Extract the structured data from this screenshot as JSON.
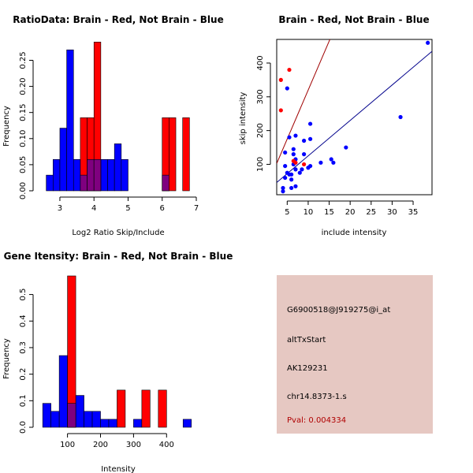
{
  "colors": {
    "red": "#ff0000",
    "blue": "#0000ff",
    "overlap": "#7f007f",
    "panel_bg": "#e6c8c2",
    "pval": "#b00000",
    "fit_red": "#a00000",
    "fit_blue": "#00008b"
  },
  "chart_data": [
    {
      "type": "bar",
      "title": "RatioData: Brain - Red, Not Brain - Blue",
      "xlabel": "Log2 Ratio Skip/Include",
      "ylabel": "Frequency",
      "xlim": [
        2.4,
        7.0
      ],
      "ylim": [
        0,
        0.29
      ],
      "xticks": [
        3,
        4,
        5,
        6,
        7
      ],
      "yticks": [
        0.0,
        0.05,
        0.1,
        0.15,
        0.2,
        0.25
      ],
      "ytick_labels": [
        "0.00",
        "0.05",
        "0.10",
        "0.15",
        "0.20",
        "0.25"
      ],
      "bin_width": 0.2,
      "series": [
        {
          "name": "Not Brain",
          "color": "blue",
          "bins": [
            {
              "x0": 2.6,
              "h": 0.03
            },
            {
              "x0": 2.8,
              "h": 0.06
            },
            {
              "x0": 3.0,
              "h": 0.12
            },
            {
              "x0": 3.2,
              "h": 0.27
            },
            {
              "x0": 3.4,
              "h": 0.06
            },
            {
              "x0": 3.6,
              "h": 0.03
            },
            {
              "x0": 3.8,
              "h": 0.06
            },
            {
              "x0": 4.0,
              "h": 0.06
            },
            {
              "x0": 4.2,
              "h": 0.06
            },
            {
              "x0": 4.4,
              "h": 0.06
            },
            {
              "x0": 4.6,
              "h": 0.09
            },
            {
              "x0": 4.8,
              "h": 0.06
            },
            {
              "x0": 6.0,
              "h": 0.03
            }
          ]
        },
        {
          "name": "Brain",
          "color": "red",
          "bins": [
            {
              "x0": 3.6,
              "h": 0.14
            },
            {
              "x0": 3.8,
              "h": 0.14
            },
            {
              "x0": 4.0,
              "h": 0.285
            },
            {
              "x0": 6.0,
              "h": 0.14
            },
            {
              "x0": 6.2,
              "h": 0.14
            },
            {
              "x0": 6.6,
              "h": 0.14
            }
          ]
        }
      ]
    },
    {
      "type": "scatter",
      "title": "Brain - Red, Not Brain - Blue",
      "xlabel": "include intensity",
      "ylabel": "skip intensity",
      "xlim": [
        2.5,
        39.5
      ],
      "ylim": [
        10,
        470
      ],
      "xticks": [
        5,
        10,
        15,
        20,
        25,
        30,
        35
      ],
      "yticks": [
        100,
        200,
        300,
        400
      ],
      "series": [
        {
          "name": "Not Brain",
          "color": "blue",
          "points": [
            [
              4,
              20
            ],
            [
              4,
              30
            ],
            [
              4.5,
              60
            ],
            [
              4.5,
              95
            ],
            [
              4.5,
              135
            ],
            [
              5,
              75
            ],
            [
              5,
              325
            ],
            [
              5.5,
              70
            ],
            [
              5.5,
              180
            ],
            [
              6,
              30
            ],
            [
              6,
              55
            ],
            [
              6,
              70
            ],
            [
              6.5,
              100
            ],
            [
              6.5,
              130
            ],
            [
              6.5,
              145
            ],
            [
              7,
              35
            ],
            [
              7,
              85
            ],
            [
              7,
              115
            ],
            [
              7,
              185
            ],
            [
              8,
              75
            ],
            [
              8.5,
              85
            ],
            [
              9,
              130
            ],
            [
              9,
              170
            ],
            [
              10,
              90
            ],
            [
              10.5,
              95
            ],
            [
              10.5,
              175
            ],
            [
              10.5,
              220
            ],
            [
              13,
              105
            ],
            [
              15.5,
              115
            ],
            [
              16,
              105
            ],
            [
              19,
              150
            ],
            [
              32,
              240
            ],
            [
              38.5,
              460
            ]
          ]
        },
        {
          "name": "Brain",
          "color": "red",
          "points": [
            [
              3.5,
              350
            ],
            [
              3.5,
              260
            ],
            [
              5.5,
              380
            ],
            [
              6.5,
              110
            ],
            [
              7,
              105
            ],
            [
              9,
              100
            ]
          ]
        }
      ],
      "fit_lines": [
        {
          "name": "Brain fit",
          "color": "fit_red",
          "intercept": 30,
          "slope": 29
        },
        {
          "name": "Not Brain fit",
          "color": "fit_blue",
          "intercept": 20,
          "slope": 10.5
        }
      ]
    },
    {
      "type": "bar",
      "title": "Gene Itensity: Brain - Red, Not Brain - Blue",
      "xlabel": "Intensity",
      "ylabel": "Frequency",
      "xlim": [
        15,
        490
      ],
      "ylim": [
        0,
        0.57
      ],
      "xticks": [
        100,
        200,
        300,
        400
      ],
      "yticks": [
        0.0,
        0.1,
        0.2,
        0.3,
        0.4,
        0.5
      ],
      "ytick_labels": [
        "0.0",
        "0.1",
        "0.2",
        "0.3",
        "0.4",
        "0.5"
      ],
      "bin_width": 25,
      "series": [
        {
          "name": "Not Brain",
          "color": "blue",
          "bins": [
            {
              "x0": 25,
              "h": 0.09
            },
            {
              "x0": 50,
              "h": 0.06
            },
            {
              "x0": 75,
              "h": 0.27
            },
            {
              "x0": 100,
              "h": 0.09
            },
            {
              "x0": 125,
              "h": 0.12
            },
            {
              "x0": 150,
              "h": 0.06
            },
            {
              "x0": 175,
              "h": 0.06
            },
            {
              "x0": 200,
              "h": 0.03
            },
            {
              "x0": 225,
              "h": 0.03
            },
            {
              "x0": 300,
              "h": 0.03
            },
            {
              "x0": 450,
              "h": 0.03
            }
          ]
        },
        {
          "name": "Brain",
          "color": "red",
          "bins": [
            {
              "x0": 100,
              "h": 0.57
            },
            {
              "x0": 250,
              "h": 0.14
            },
            {
              "x0": 325,
              "h": 0.14
            },
            {
              "x0": 375,
              "h": 0.14
            }
          ]
        }
      ]
    }
  ],
  "info_panel": {
    "probe_id": "G6900518@J919275@i_at",
    "event_type": "altTxStart",
    "accession": "AK129231",
    "location": "chr14.8373-1.s",
    "pval": "Pval: 0.004334"
  }
}
